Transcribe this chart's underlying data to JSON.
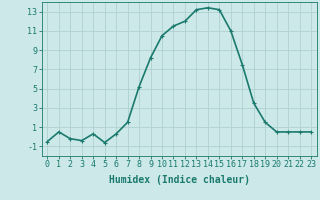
{
  "x": [
    0,
    1,
    2,
    3,
    4,
    5,
    6,
    7,
    8,
    9,
    10,
    11,
    12,
    13,
    14,
    15,
    16,
    17,
    18,
    19,
    20,
    21,
    22,
    23
  ],
  "y": [
    -0.5,
    0.5,
    -0.2,
    -0.4,
    0.3,
    -0.6,
    0.3,
    1.5,
    5.2,
    8.2,
    10.5,
    11.5,
    12.0,
    13.2,
    13.4,
    13.2,
    11.0,
    7.5,
    3.5,
    1.5,
    0.5,
    0.5,
    0.5,
    0.5
  ],
  "line_color": "#1a7a6e",
  "bg_color": "#cce8e8",
  "grid_color": "#b0d0d0",
  "xlabel": "Humidex (Indice chaleur)",
  "ylim": [
    -2,
    14
  ],
  "xlim": [
    -0.5,
    23.5
  ],
  "yticks": [
    -1,
    1,
    3,
    5,
    7,
    9,
    11,
    13
  ],
  "xticks": [
    0,
    1,
    2,
    3,
    4,
    5,
    6,
    7,
    8,
    9,
    10,
    11,
    12,
    13,
    14,
    15,
    16,
    17,
    18,
    19,
    20,
    21,
    22,
    23
  ],
  "marker": "P",
  "marker_size": 2.5,
  "line_width": 1.2,
  "xlabel_fontsize": 7,
  "tick_fontsize": 6
}
